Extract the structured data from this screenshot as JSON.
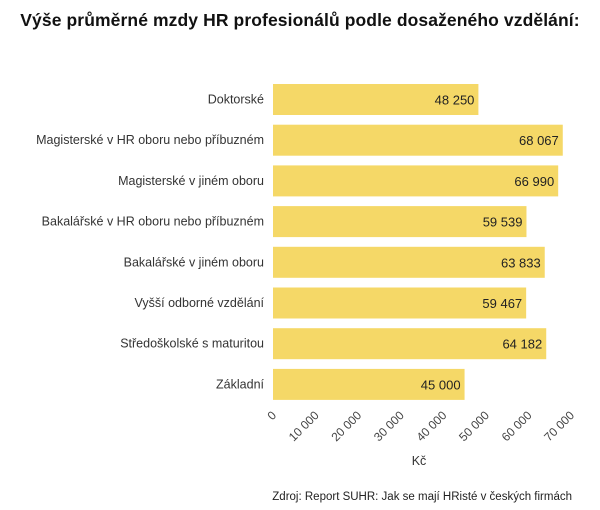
{
  "chart_data": {
    "type": "bar",
    "orientation": "horizontal",
    "title": "Výše průměrné mzdy HR profesionálů podle dosaženého vzdělání:",
    "categories": [
      "Doktorské",
      "Magisterské v HR oboru nebo příbuzném",
      "Magisterské v jiném oboru",
      "Bakalářské v HR oboru nebo příbuzném",
      "Bakalářské v jiném oboru",
      "Vyšší odborné vzdělání",
      "Středoškolské s maturitou",
      "Základní"
    ],
    "values": [
      48250,
      68067,
      66990,
      59539,
      63833,
      59467,
      64182,
      45000
    ],
    "data_labels": [
      "48 250",
      "68 067",
      "66 990",
      "59 539",
      "63 833",
      "59 467",
      "64 182",
      "45 000"
    ],
    "xlabel": "Kč",
    "ylabel": "",
    "xlim": [
      0,
      70000
    ],
    "ticks": [
      0,
      10000,
      20000,
      30000,
      40000,
      50000,
      60000,
      70000
    ],
    "tick_labels": [
      "0",
      "10 000",
      "20 000",
      "30 000",
      "40 000",
      "50 000",
      "60 000",
      "70 000"
    ],
    "grid": false,
    "bar_color": "#f5d867",
    "source": "Zdroj: Report SUHR: Jak se mají HRisté v českých firmách"
  }
}
